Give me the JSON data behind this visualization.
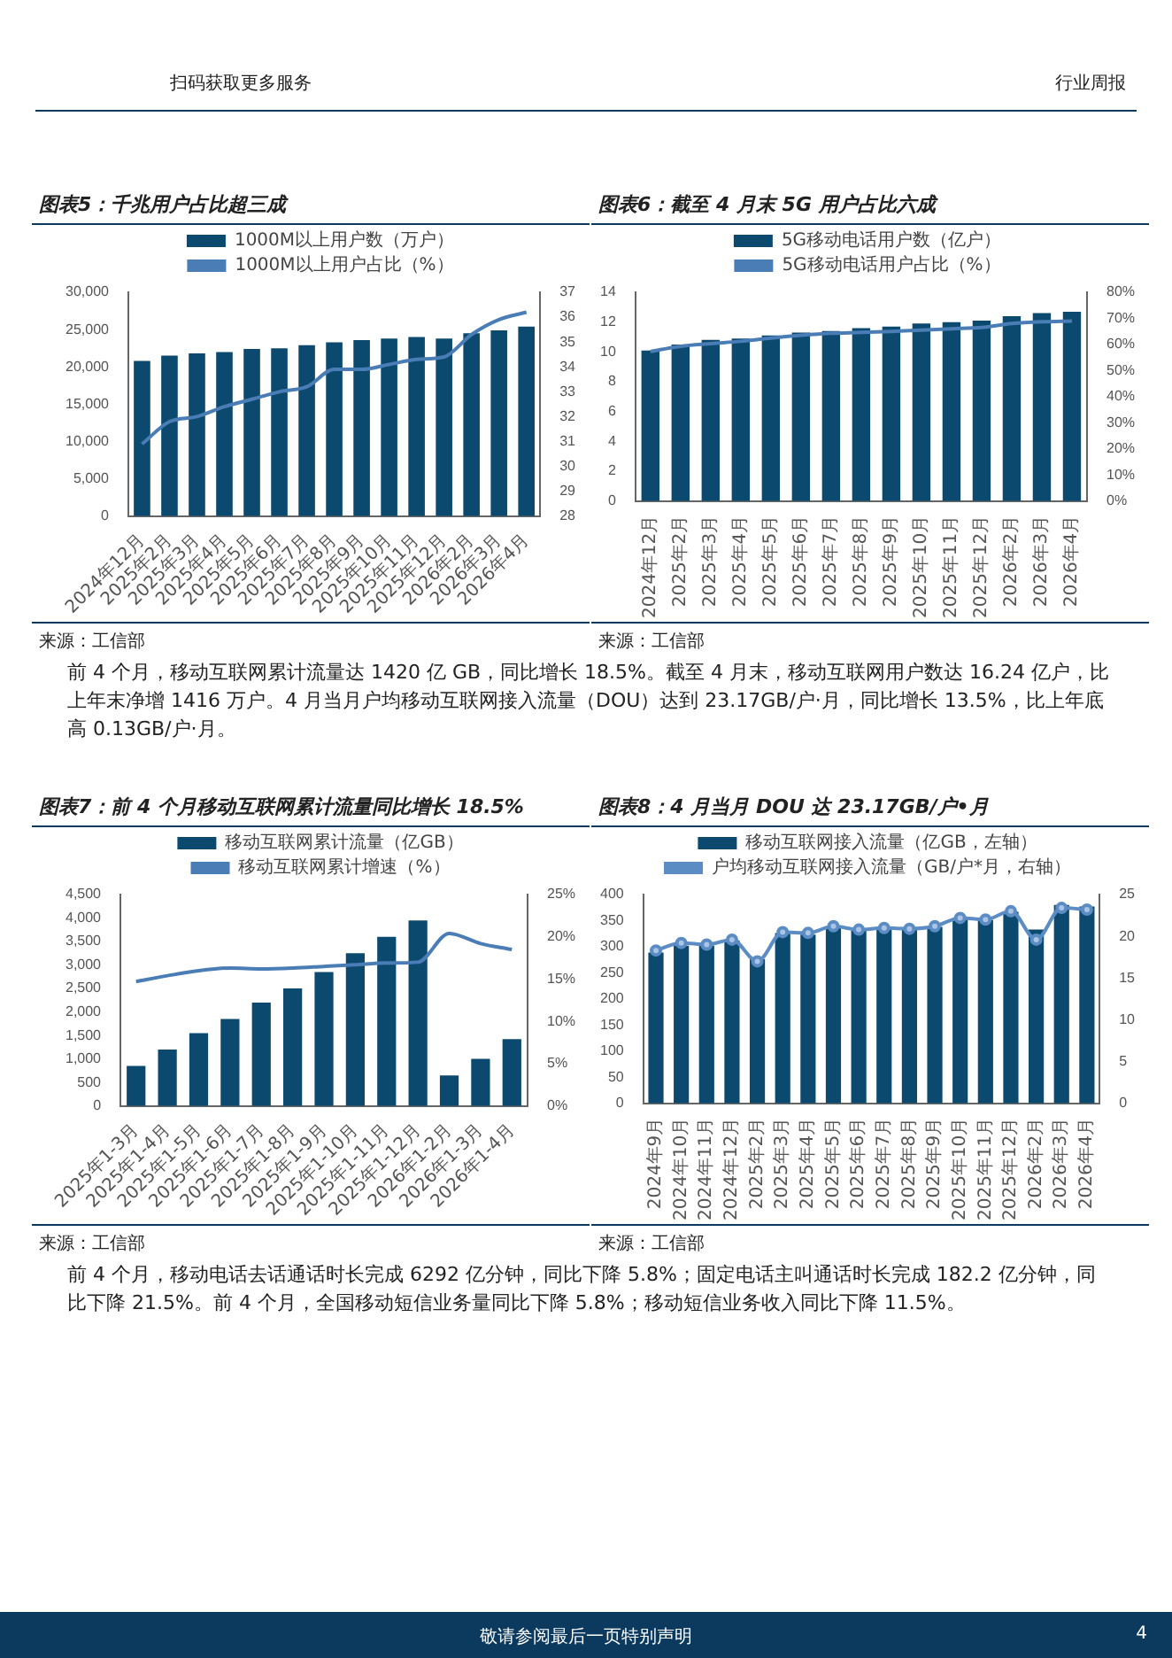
{
  "chart_data": [
    {
      "type": "bar",
      "title": "图表5：千兆用户占比超三成",
      "annotations": [
        "扫码获取更多服务",
        "行业周报",
        "来源：工信部"
      ],
      "legend": "top",
      "categories": [
        "2024年12月",
        "2025年2月",
        "2025年3月",
        "2025年4月",
        "2025年5月",
        "2025年6月",
        "2025年7月",
        "2025年8月",
        "2025年9月",
        "2025年10月",
        "2025年11月",
        "2025年12月",
        "2026年2月",
        "2026年3月",
        "2026年4月"
      ],
      "ylim": [
        0,
        30000
      ],
      "yticks": [
        0,
        {
          "value": 5000,
          "label": "5,000"
        },
        {
          "value": 10000,
          "label": "10,000"
        },
        {
          "value": 15000,
          "label": "15,000"
        },
        {
          "value": 20000,
          "label": "20,000"
        },
        {
          "value": 25000,
          "label": "25,000"
        },
        {
          "value": 30000,
          "label": "30,000"
        }
      ],
      "y2lim": [
        28,
        37
      ],
      "y2ticks": [
        28,
        29,
        30,
        31,
        32,
        33,
        34,
        35,
        36,
        37
      ],
      "series": [
        {
          "name": "1000M以上用户数（万户）",
          "color": "#0b4a6e",
          "values": [
            20800,
            21500,
            21800,
            22000,
            22400,
            22500,
            22900,
            23300,
            23600,
            23800,
            24000,
            23800,
            24500,
            24900,
            25400
          ]
        },
        {
          "name": "1000M以上用户占比（%）",
          "type": "line",
          "axis": "y2",
          "color": "#4a7db5",
          "values": [
            30.9,
            31.8,
            32.0,
            32.4,
            32.7,
            33.0,
            33.2,
            33.9,
            33.9,
            34.1,
            34.3,
            34.4,
            35.3,
            35.9,
            36.2
          ]
        }
      ]
    },
    {
      "type": "bar",
      "title": "图表6：截至 4 月末 5G 用户占比六成",
      "annotations": [
        "来源：工信部",
        "前 4 个月，移动互联网累计流量达 1420 亿 GB，同比增长 18.5%。截至 4 月末，移动互联网用户数达 16.24 亿户，比上年末净增 1416 万户。4 月当月户均移动互联网接入流量（DOU）达到 23.17GB/户·月，同比增长 13.5%，比上年底高 0.13GB/户·月。"
      ],
      "legend": "top",
      "categories": [
        "2024年12月",
        "2025年2月",
        "2025年3月",
        "2025年4月",
        "2025年5月",
        "2025年6月",
        "2025年7月",
        "2025年8月",
        "2025年9月",
        "2025年10月",
        "2025年11月",
        "2025年12月",
        "2026年2月",
        "2026年3月",
        "2026年4月"
      ],
      "ylim": [
        0,
        14
      ],
      "yticks": [
        0,
        2,
        4,
        6,
        8,
        10,
        12,
        14
      ],
      "y2lim": [
        0,
        80
      ],
      "y2ticks": [
        {
          "value": 0,
          "label": "0%"
        },
        {
          "value": 10,
          "label": "10%"
        },
        {
          "value": 20,
          "label": "20%"
        },
        {
          "value": 30,
          "label": "30%"
        },
        {
          "value": 40,
          "label": "40%"
        },
        {
          "value": 50,
          "label": "50%"
        },
        {
          "value": 60,
          "label": "60%"
        },
        {
          "value": 70,
          "label": "70%"
        },
        {
          "value": 80,
          "label": "80%"
        }
      ],
      "series": [
        {
          "name": "5G移动电话用户数（亿户）",
          "color": "#0b4a6e",
          "values": [
            10.1,
            10.5,
            10.8,
            10.9,
            11.1,
            11.3,
            11.4,
            11.6,
            11.7,
            11.9,
            12.0,
            12.1,
            12.4,
            12.6,
            12.7
          ]
        },
        {
          "name": "5G移动电话用户占比（%）",
          "type": "line",
          "axis": "y2",
          "color": "#4a7db5",
          "values": [
            57.3,
            59.3,
            60.3,
            61.2,
            62.4,
            63.5,
            64.3,
            64.6,
            65.0,
            65.5,
            66.0,
            66.5,
            68.0,
            68.7,
            69.0
          ]
        }
      ]
    },
    {
      "type": "bar",
      "title": "图表7：前 4 个月移动互联网累计流量同比增长 18.5%",
      "annotations": [
        "来源：工信部"
      ],
      "legend": "top",
      "categories": [
        "2025年1-3月",
        "2025年1-4月",
        "2025年1-5月",
        "2025年1-6月",
        "2025年1-7月",
        "2025年1-8月",
        "2025年1-9月",
        "2025年1-10月",
        "2025年1-11月",
        "2025年1-12月",
        "2026年1-2月",
        "2026年1-3月",
        "2026年1-4月"
      ],
      "ylim": [
        0,
        4500
      ],
      "yticks": [
        0,
        500,
        {
          "value": 1000,
          "label": "1,000"
        },
        {
          "value": 1500,
          "label": "1,500"
        },
        {
          "value": 2000,
          "label": "2,000"
        },
        {
          "value": 2500,
          "label": "2,500"
        },
        {
          "value": 3000,
          "label": "3,000"
        },
        {
          "value": 3500,
          "label": "3,500"
        },
        {
          "value": 4000,
          "label": "4,000"
        },
        {
          "value": 4500,
          "label": "4,500"
        }
      ],
      "y2lim": [
        0,
        25
      ],
      "y2ticks": [
        {
          "value": 0,
          "label": "0%"
        },
        {
          "value": 5,
          "label": "5%"
        },
        {
          "value": 10,
          "label": "10%"
        },
        {
          "value": 15,
          "label": "15%"
        },
        {
          "value": 20,
          "label": "20%"
        },
        {
          "value": 25,
          "label": "25%"
        }
      ],
      "series": [
        {
          "name": "移动互联网累计流量（亿GB）",
          "color": "#0b4a6e",
          "values": [
            850,
            1200,
            1550,
            1850,
            2200,
            2500,
            2850,
            3250,
            3600,
            3950,
            650,
            1000,
            1420
          ]
        },
        {
          "name": "移动互联网累计增速（%）",
          "type": "line",
          "axis": "y2",
          "color": "#4a7db5",
          "values": [
            14.7,
            15.4,
            16.0,
            16.3,
            16.2,
            16.3,
            16.5,
            16.7,
            16.9,
            17.0,
            20.4,
            19.2,
            18.5
          ]
        }
      ]
    },
    {
      "type": "bar",
      "title": "图表8：4 月当月 DOU 达 23.17GB/户•月",
      "annotations": [
        "来源：工信部",
        "前 4 个月，移动电话去话通话时长完成 6292 亿分钟，同比下降 5.8%；固定电话主叫通话时长完成 182.2 亿分钟，同比下降 21.5%。前 4 个月，全国移动短信业务量同比下降 5.8%；移动短信业务收入同比下降 11.5%。",
        "敬请参阅最后一页特别声明",
        "4"
      ],
      "legend": "top",
      "categories": [
        "2024年9月",
        "2024年10月",
        "2024年11月",
        "2024年12月",
        "2025年2月",
        "2025年3月",
        "2025年4月",
        "2025年5月",
        "2025年6月",
        "2025年7月",
        "2025年8月",
        "2025年9月",
        "2025年10月",
        "2025年11月",
        "2025年12月",
        "2026年2月",
        "2026年3月",
        "2026年4月"
      ],
      "ylim": [
        0,
        400
      ],
      "yticks": [
        0,
        50,
        100,
        150,
        200,
        250,
        300,
        350,
        400
      ],
      "y2lim": [
        0,
        25
      ],
      "y2ticks": [
        0,
        5,
        10,
        15,
        20,
        25
      ],
      "series": [
        {
          "name": "移动互联网接入流量（亿GB，左轴）",
          "color": "#0b4a6e",
          "values": [
            289,
            302,
            302,
            312,
            276,
            326,
            323,
            336,
            331,
            333,
            333,
            338,
            354,
            351,
            367,
            333,
            380,
            377
          ]
        },
        {
          "name": "户均移动互联网接入流量（GB/户*月，右轴）",
          "type": "line",
          "axis": "y2",
          "marker": "circle",
          "color": "#5b8cc4",
          "values": [
            18.3,
            19.2,
            19.0,
            19.6,
            17.0,
            20.5,
            20.4,
            21.2,
            20.8,
            21.0,
            20.9,
            21.2,
            22.2,
            22.0,
            23.0,
            19.6,
            23.4,
            23.2
          ]
        }
      ]
    }
  ]
}
